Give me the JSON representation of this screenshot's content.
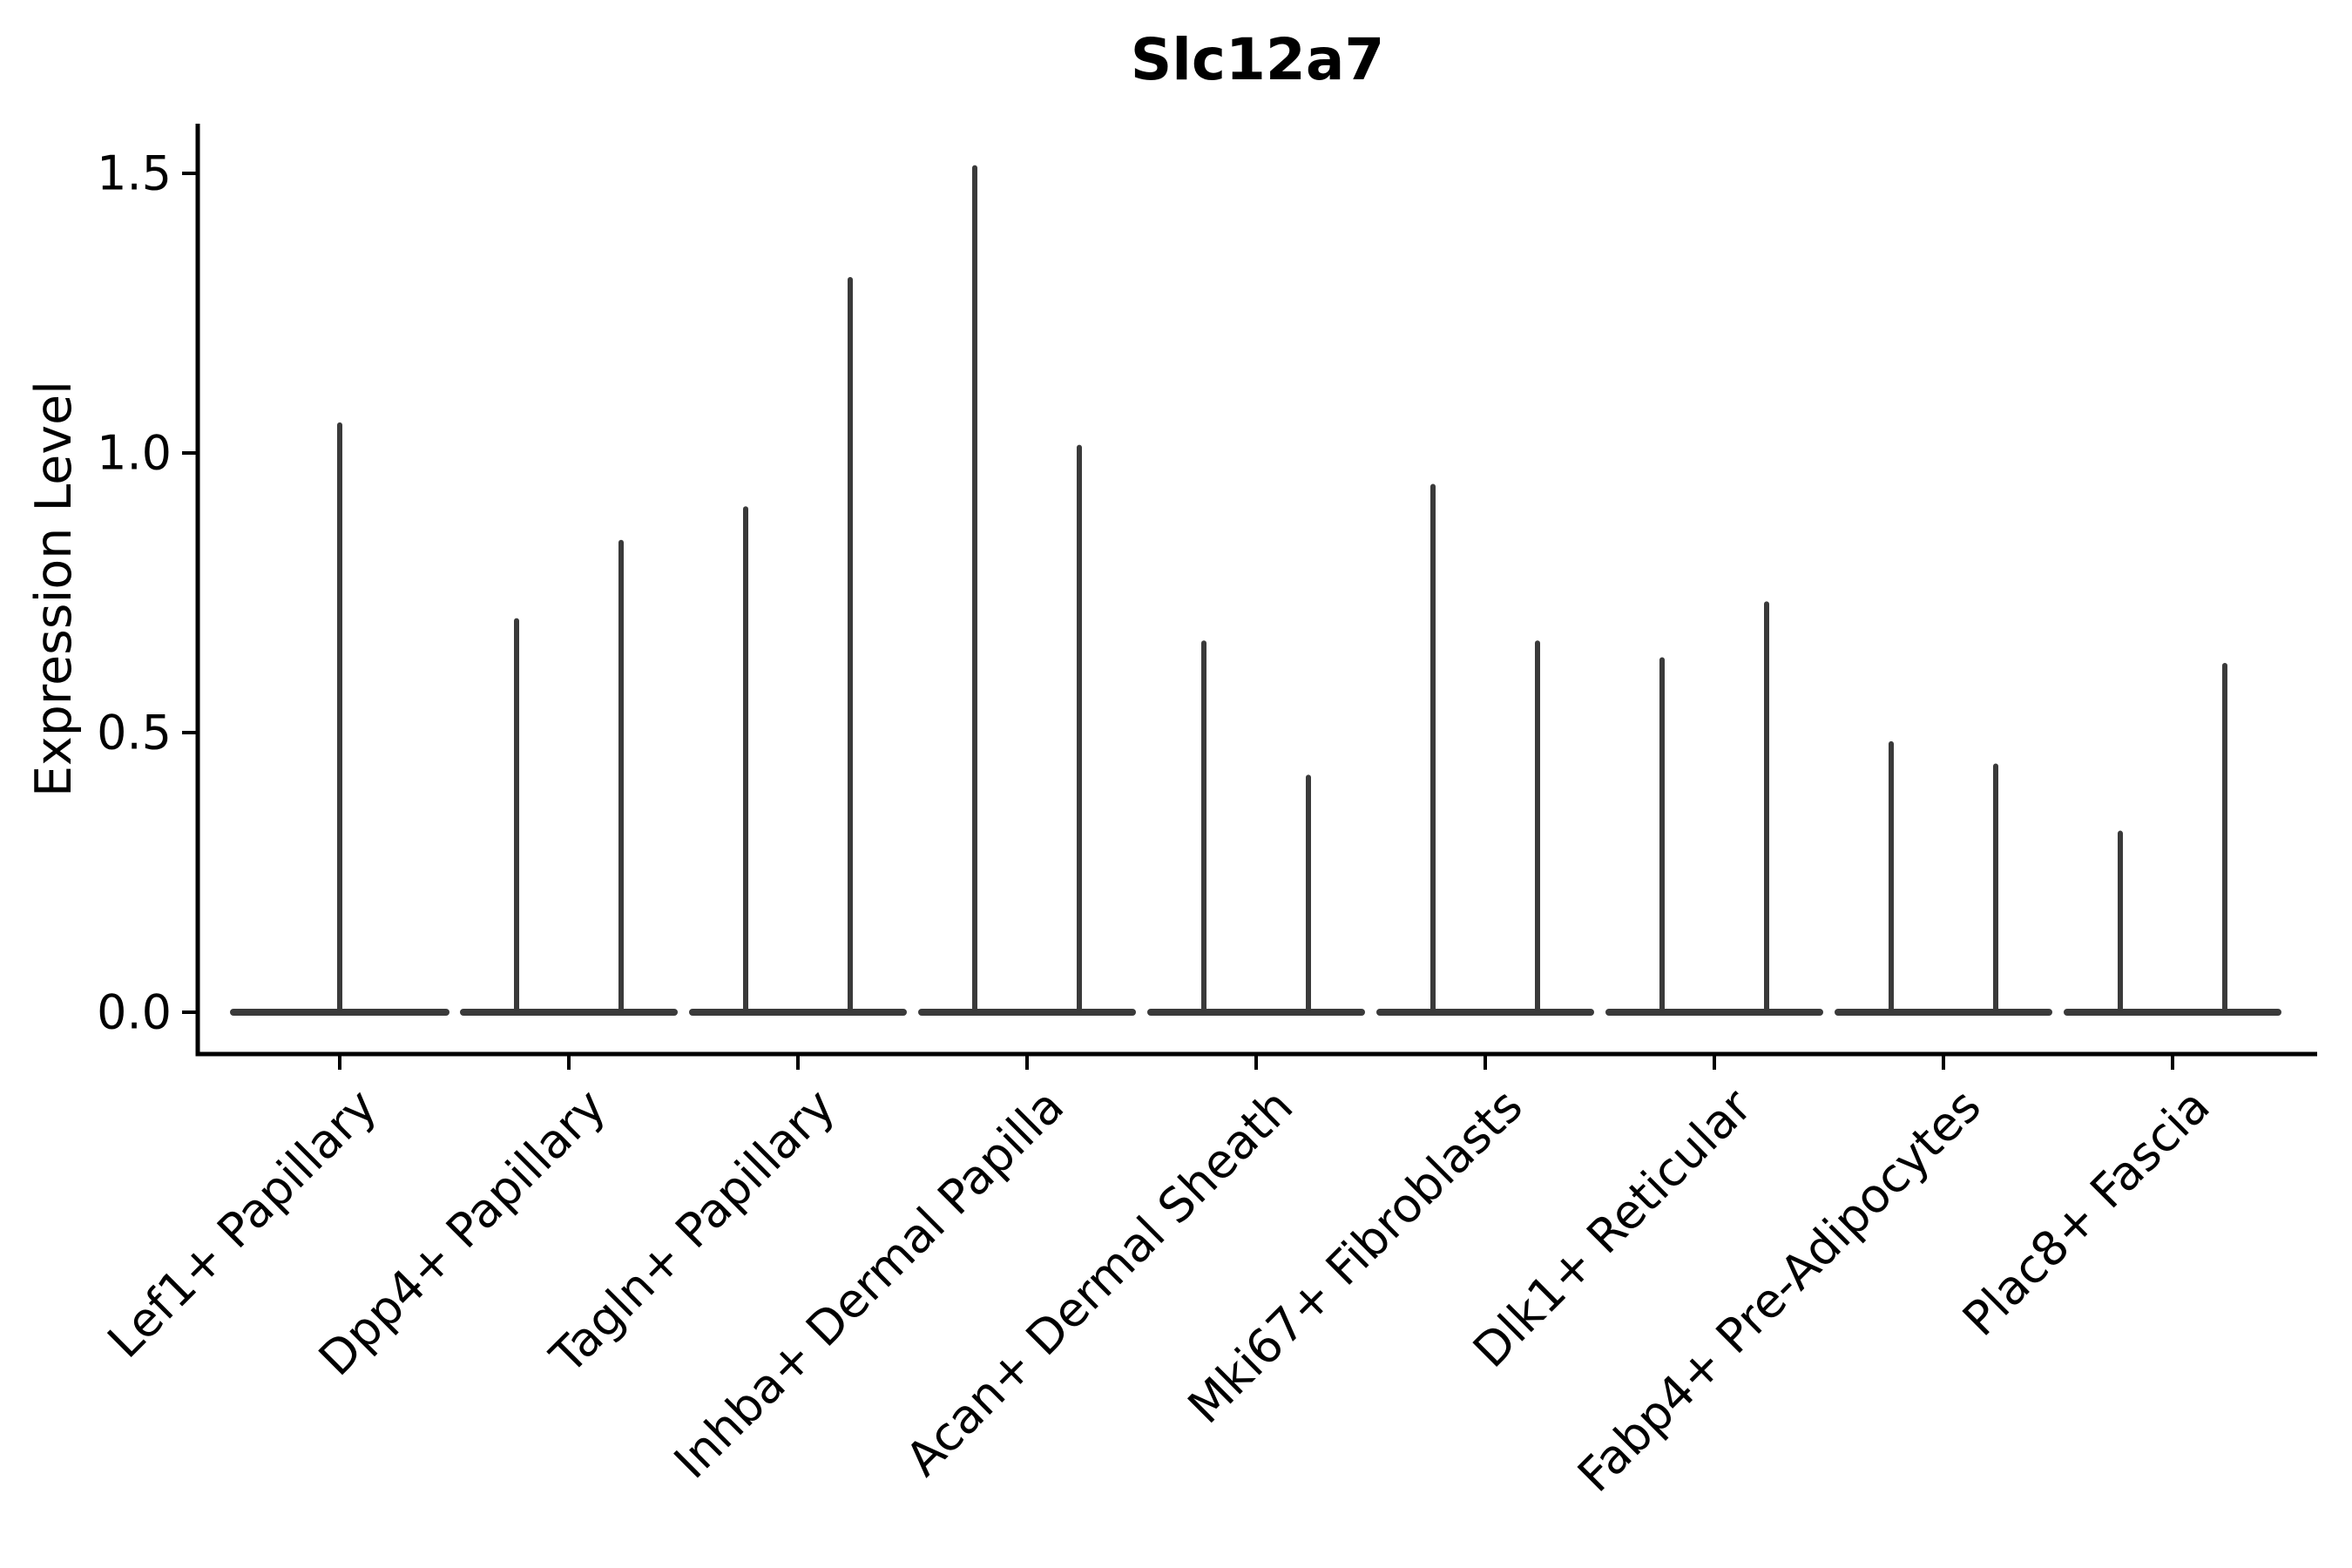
{
  "title": "Slc12a7",
  "y_axis": {
    "label": "Expression Level",
    "tick_labels": [
      "0.0",
      "0.5",
      "1.0",
      "1.5"
    ],
    "tick_values": [
      0.0,
      0.5,
      1.0,
      1.5
    ]
  },
  "chart_data": {
    "type": "violin",
    "title": "Slc12a7",
    "xlabel": "",
    "ylabel": "Expression Level",
    "ylim": [
      -0.08,
      1.59
    ],
    "yticks": [
      0.0,
      0.5,
      1.0,
      1.5
    ],
    "ytick_labels": [
      "0.0",
      "0.5",
      "1.0",
      "1.5"
    ],
    "grid": false,
    "legend": "none",
    "background": "#ffffff",
    "violin_color": "#3a3a3a",
    "axis_color": "#000000",
    "categories": [
      "Lef1+ Papillary",
      "Dpp4+ Papillary",
      "Tagln+ Papillary",
      "Inhba+ Dermal Papilla",
      "Acan+ Dermal Sheath",
      "Mki67+ Fibroblasts",
      "Dlk1+ Reticular",
      "Fabp4+ Pre-Adipocytes",
      "Plac8+ Fascia"
    ],
    "series": [
      {
        "category": "Lef1+ Papillary",
        "violins": [
          {
            "min": 0,
            "max": 1.05
          }
        ]
      },
      {
        "category": "Dpp4+ Papillary",
        "violins": [
          {
            "min": 0,
            "max": 0.7
          },
          {
            "min": 0,
            "max": 0.84
          }
        ]
      },
      {
        "category": "Tagln+ Papillary",
        "violins": [
          {
            "min": 0,
            "max": 0.9
          },
          {
            "min": 0,
            "max": 1.31
          }
        ]
      },
      {
        "category": "Inhba+ Dermal Papilla",
        "violins": [
          {
            "min": 0,
            "max": 1.51
          },
          {
            "min": 0,
            "max": 1.01
          }
        ]
      },
      {
        "category": "Acan+ Dermal Sheath",
        "violins": [
          {
            "min": 0,
            "max": 0.66
          },
          {
            "min": 0,
            "max": 0.42
          }
        ]
      },
      {
        "category": "Mki67+ Fibroblasts",
        "violins": [
          {
            "min": 0,
            "max": 0.94
          },
          {
            "min": 0,
            "max": 0.66
          }
        ]
      },
      {
        "category": "Dlk1+ Reticular",
        "violins": [
          {
            "min": 0,
            "max": 0.63
          },
          {
            "min": 0,
            "max": 0.73
          }
        ]
      },
      {
        "category": "Fabp4+ Pre-Adipocytes",
        "violins": [
          {
            "min": 0,
            "max": 0.48
          },
          {
            "min": 0,
            "max": 0.44
          }
        ]
      },
      {
        "category": "Plac8+ Fascia",
        "violins": [
          {
            "min": 0,
            "max": 0.32
          },
          {
            "min": 0,
            "max": 0.62
          }
        ]
      }
    ]
  }
}
